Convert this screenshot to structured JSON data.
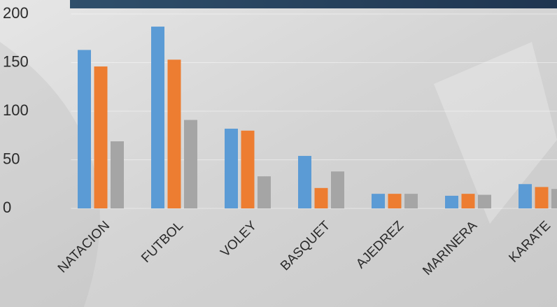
{
  "chart_data": {
    "type": "bar",
    "categories": [
      "NATACION",
      "FUTBOL",
      "VOLEY",
      "BASQUET",
      "AJEDREZ",
      "MARINERA",
      "KARATE"
    ],
    "series": [
      {
        "color": "#5b9bd5",
        "values": [
          163,
          187,
          82,
          54,
          15,
          13,
          25
        ]
      },
      {
        "color": "#ed7d31",
        "values": [
          146,
          153,
          80,
          21,
          15,
          15,
          22
        ]
      },
      {
        "color": "#a5a5a5",
        "values": [
          69,
          91,
          33,
          38,
          15,
          14,
          20
        ]
      }
    ],
    "ylim": [
      0,
      200
    ],
    "yticks": [
      0,
      50,
      100,
      150,
      200
    ],
    "grid": true
  }
}
